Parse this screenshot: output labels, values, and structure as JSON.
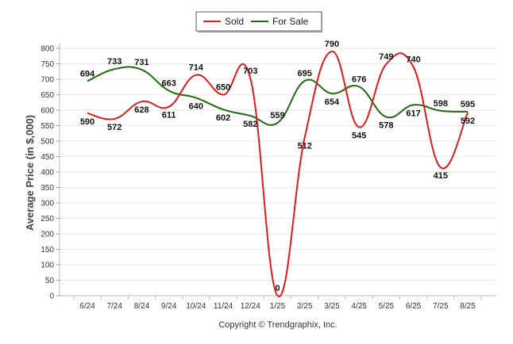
{
  "chart_data": {
    "type": "line",
    "ylabel": "Average Price (in $,000)",
    "ylim": [
      0,
      800
    ],
    "yticks": [
      0,
      50,
      100,
      150,
      200,
      250,
      300,
      350,
      400,
      450,
      500,
      550,
      600,
      650,
      700,
      750,
      800
    ],
    "categories": [
      "6/24",
      "7/24",
      "8/24",
      "9/24",
      "10/24",
      "11/24",
      "12/24",
      "1/25",
      "2/25",
      "3/25",
      "4/25",
      "5/25",
      "6/25",
      "7/25",
      "8/25"
    ],
    "series": [
      {
        "name": "Sold",
        "color": "#e31a1c",
        "values": [
          590,
          572,
          628,
          611,
          714,
          650,
          703,
          0,
          512,
          790,
          545,
          749,
          740,
          415,
          592
        ]
      },
      {
        "name": "For Sale",
        "color": "#1f6b10",
        "values": [
          694,
          733,
          731,
          663,
          640,
          602,
          582,
          559,
          695,
          654,
          676,
          578,
          617,
          598,
          595
        ]
      }
    ],
    "legend_position": "top-center",
    "grid": true,
    "footer": "Copyright © Trendgraphix, Inc."
  }
}
